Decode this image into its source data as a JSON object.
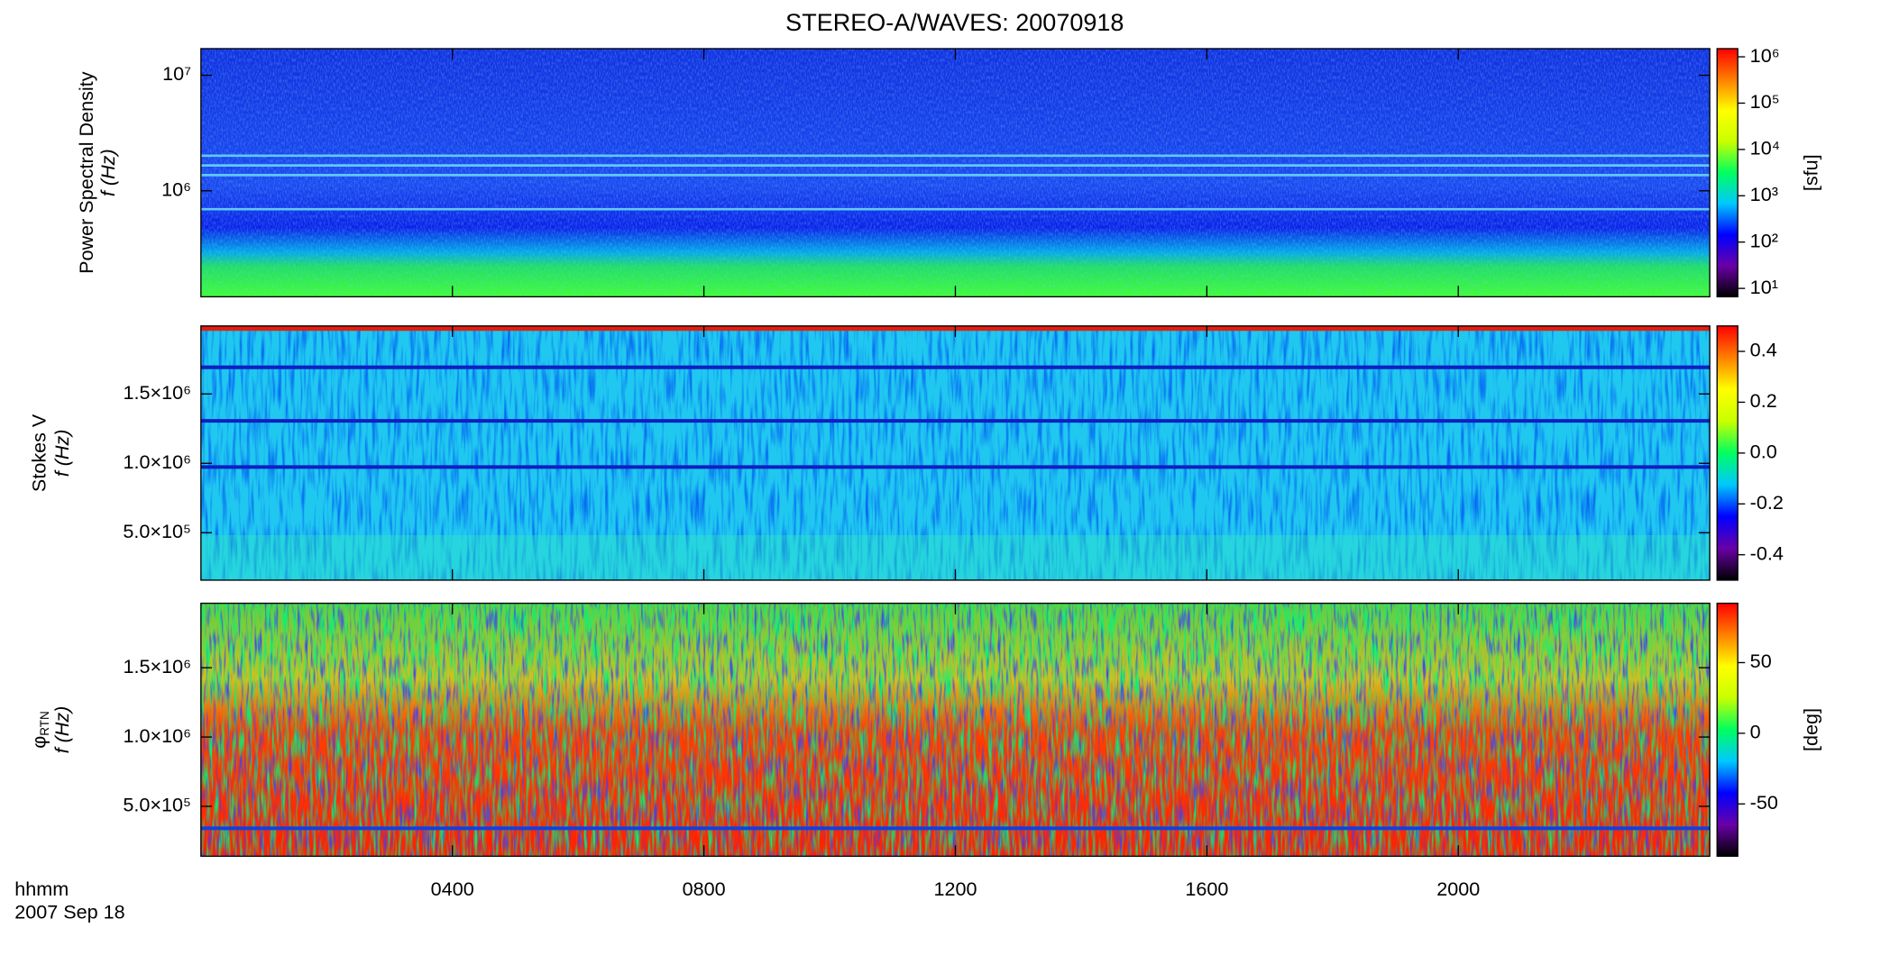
{
  "title": "STEREO-A/WAVES: 20070918",
  "x_label": "hhmm",
  "x_date": "2007 Sep 18",
  "xlim": [
    0,
    24
  ],
  "xticks": [
    {
      "value": 4,
      "label": "0400"
    },
    {
      "value": 8,
      "label": "0800"
    },
    {
      "value": 12,
      "label": "1200"
    },
    {
      "value": 16,
      "label": "1600"
    },
    {
      "value": 20,
      "label": "2000"
    }
  ],
  "colors": [
    "#000000",
    "#6a00a8",
    "#0000ff",
    "#00c8ff",
    "#00ff60",
    "#c8ff00",
    "#ffff00",
    "#ff8000",
    "#ff0000"
  ],
  "chart_data": [
    {
      "type": "spectrogram",
      "y_label": "Power Spectral Density",
      "y_unit": "f (Hz)",
      "ylog": true,
      "ylim": [
        121000,
        17000000
      ],
      "yticks": [
        {
          "value": 1000000,
          "label": "10⁶"
        },
        {
          "value": 10000000,
          "label": "10⁷"
        }
      ],
      "colorbar_label": "[sfu]",
      "clog": true,
      "clim": [
        6.6,
        1500000
      ],
      "cticks": [
        {
          "value": 10,
          "label": "10¹"
        },
        {
          "value": 100,
          "label": "10²"
        },
        {
          "value": 1000,
          "label": "10³"
        },
        {
          "value": 10000,
          "label": "10⁴"
        },
        {
          "value": 100000,
          "label": "10⁵"
        },
        {
          "value": 1000000,
          "label": "10⁶"
        }
      ]
    },
    {
      "type": "spectrogram",
      "y_label": "Stokes V",
      "y_unit": "f (Hz)",
      "ylog": false,
      "ylim": [
        158000,
        1990000
      ],
      "yticks": [
        {
          "value": 500000,
          "label": "5.0×10⁵"
        },
        {
          "value": 1000000,
          "label": "1.0×10⁶"
        },
        {
          "value": 1500000,
          "label": "1.5×10⁶"
        }
      ],
      "colorbar_label": null,
      "clog": false,
      "clim": [
        -0.5,
        0.5
      ],
      "cticks": [
        {
          "value": -0.4,
          "label": "-0.4"
        },
        {
          "value": -0.2,
          "label": "-0.2"
        },
        {
          "value": 0,
          "label": "0.0"
        },
        {
          "value": 0.2,
          "label": "0.2"
        },
        {
          "value": 0.4,
          "label": "0.4"
        }
      ]
    },
    {
      "type": "spectrogram",
      "y_label": "φ",
      "y_label_subscript": "RTN",
      "y_unit": "f (Hz)",
      "ylog": false,
      "ylim": [
        140000,
        1965000
      ],
      "yticks": [
        {
          "value": 500000,
          "label": "5.0×10⁵"
        },
        {
          "value": 1000000,
          "label": "1.0×10⁶"
        },
        {
          "value": 1500000,
          "label": "1.5×10⁶"
        }
      ],
      "colorbar_label": "[deg]",
      "clog": false,
      "clim": [
        -87,
        92
      ],
      "cticks": [
        -50,
        0,
        50
      ]
    }
  ]
}
